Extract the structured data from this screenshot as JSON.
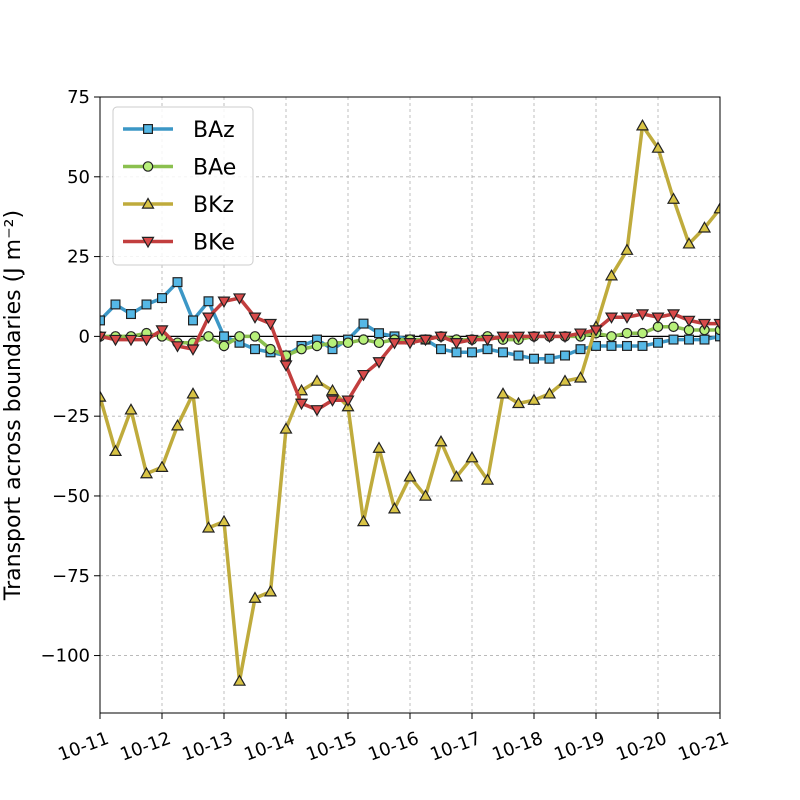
{
  "chart_data": {
    "type": "line",
    "ylabel": "Transport across boundaries (J m⁻²)",
    "xlabel": "",
    "title": "",
    "ylim": [
      -118,
      75
    ],
    "xlim": [
      "10-11",
      "10-21"
    ],
    "grid": true,
    "legend_position": "top-left",
    "zero_line": true,
    "yticks": [
      75,
      50,
      25,
      0,
      -25,
      -50,
      -75,
      -100
    ],
    "ytick_labels": [
      "75",
      "50",
      "25",
      "0",
      "−25",
      "−50",
      "−75",
      "−100"
    ],
    "xticks": [
      "10-11",
      "10-12",
      "10-13",
      "10-14",
      "10-15",
      "10-16",
      "10-17",
      "10-18",
      "10-19",
      "10-20",
      "10-21"
    ],
    "x": [
      0.0,
      0.25,
      0.5,
      0.75,
      1.0,
      1.25,
      1.5,
      1.75,
      2.0,
      2.25,
      2.5,
      2.75,
      3.0,
      3.25,
      3.5,
      3.75,
      4.0,
      4.25,
      4.5,
      4.75,
      5.0,
      5.25,
      5.5,
      5.75,
      6.0,
      6.25,
      6.5,
      6.75,
      7.0,
      7.25,
      7.5,
      7.75,
      8.0,
      8.25,
      8.5,
      8.75,
      9.0,
      9.25,
      9.5,
      9.75,
      10.0
    ],
    "x_unit": "days after 10-11",
    "series": [
      {
        "name": "BAz",
        "color": "#3c97c6",
        "marker_fill": "#55b8e6",
        "marker": "square",
        "values": [
          5,
          10,
          7,
          10,
          12,
          17,
          5,
          11,
          0,
          -2,
          -4,
          -5,
          -6,
          -3,
          -1,
          -4,
          -1,
          4,
          1,
          0,
          -1,
          -1,
          -4,
          -5,
          -5,
          -4,
          -5,
          -6,
          -7,
          -7,
          -6,
          -4,
          -3,
          -3,
          -3,
          -3,
          -2,
          -1,
          -1,
          -1,
          0
        ]
      },
      {
        "name": "BAe",
        "color": "#8bc04f",
        "marker_fill": "#b7f07a",
        "marker": "circle",
        "values": [
          0,
          0,
          0,
          1,
          0,
          -2,
          -2,
          0,
          -3,
          0,
          0,
          -4,
          -6,
          -4,
          -3,
          -2,
          -2,
          -1,
          -2,
          -1,
          -1,
          -1,
          0,
          -1,
          -1,
          0,
          -1,
          -1,
          0,
          0,
          0,
          0,
          1,
          0,
          1,
          1,
          3,
          3,
          2,
          2,
          2
        ]
      },
      {
        "name": "BKz",
        "color": "#bfab3c",
        "marker_fill": "#d9c445",
        "marker": "triangle-up",
        "values": [
          -19,
          -36,
          -23,
          -43,
          -41,
          -28,
          -18,
          -60,
          -58,
          -108,
          -82,
          -80,
          -29,
          -17,
          -14,
          -17,
          -22,
          -58,
          -35,
          -54,
          -44,
          -50,
          -33,
          -44,
          -38,
          -45,
          -18,
          -21,
          -20,
          -18,
          -14,
          -13,
          3,
          19,
          27,
          66,
          59,
          43,
          29,
          34,
          40
        ]
      },
      {
        "name": "BKe",
        "color": "#c23e3e",
        "marker_fill": "#d94a4a",
        "marker": "triangle-down",
        "values": [
          0,
          -1,
          -1,
          -1,
          2,
          -3,
          -4,
          6,
          11,
          12,
          6,
          4,
          -9,
          -21,
          -23,
          -20,
          -20,
          -12,
          -8,
          -2,
          -2,
          -1,
          0,
          -2,
          -1,
          -1,
          0,
          0,
          0,
          0,
          0,
          1,
          2,
          6,
          6,
          7,
          6,
          7,
          5,
          4,
          4
        ]
      }
    ]
  }
}
